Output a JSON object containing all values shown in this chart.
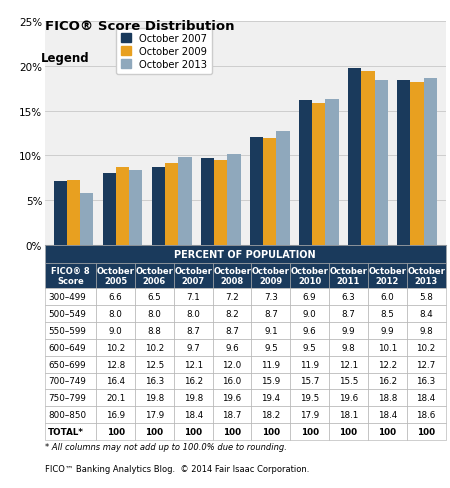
{
  "title": "FICO® Score Distribution",
  "categories": [
    "300–499",
    "500–549",
    "550–599",
    "600–649",
    "650–699",
    "700–749",
    "750–799",
    "800–850"
  ],
  "series": [
    {
      "label": "October 2007",
      "color": "#1a3a5c",
      "values": [
        7.1,
        8.0,
        8.7,
        9.7,
        12.1,
        16.2,
        19.8,
        18.4
      ]
    },
    {
      "label": "October 2009",
      "color": "#e8a020",
      "values": [
        7.3,
        8.7,
        9.1,
        9.5,
        11.9,
        15.9,
        19.4,
        18.2
      ]
    },
    {
      "label": "October 2013",
      "color": "#8fa8bc",
      "values": [
        5.8,
        8.4,
        9.8,
        10.2,
        12.7,
        16.3,
        18.4,
        18.6
      ]
    }
  ],
  "ylim": [
    0,
    25
  ],
  "yticks": [
    0,
    5,
    10,
    15,
    20,
    25
  ],
  "ytick_labels": [
    "0%",
    "5%",
    "10%",
    "15%",
    "20%",
    "25%"
  ],
  "legend_title": "Legend",
  "chart_bg": "#f0f0f0",
  "grid_color": "#c8c8c8",
  "table_header_bg": "#1a3a5c",
  "table_header_fg": "#ffffff",
  "table_col_header_bg": "#1a3a5c",
  "table_col_header_fg": "#ffffff",
  "table_row_bg": "#ffffff",
  "table_data_fg": "#000000",
  "table_total_bg": "#ffffff",
  "table_border": "#aaaaaa",
  "table_columns": [
    "FICO® 8\nScore",
    "October\n2005",
    "October\n2006",
    "October\n2007",
    "October\n2008",
    "October\n2009",
    "October\n2010",
    "October\n2011",
    "October\n2012",
    "October\n2013"
  ],
  "table_rows": [
    [
      "300–499",
      "6.6",
      "6.5",
      "7.1",
      "7.2",
      "7.3",
      "6.9",
      "6.3",
      "6.0",
      "5.8"
    ],
    [
      "500–549",
      "8.0",
      "8.0",
      "8.0",
      "8.2",
      "8.7",
      "9.0",
      "8.7",
      "8.5",
      "8.4"
    ],
    [
      "550–599",
      "9.0",
      "8.8",
      "8.7",
      "8.7",
      "9.1",
      "9.6",
      "9.9",
      "9.9",
      "9.8"
    ],
    [
      "600–649",
      "10.2",
      "10.2",
      "9.7",
      "9.6",
      "9.5",
      "9.5",
      "9.8",
      "10.1",
      "10.2"
    ],
    [
      "650–699",
      "12.8",
      "12.5",
      "12.1",
      "12.0",
      "11.9",
      "11.9",
      "12.1",
      "12.2",
      "12.7"
    ],
    [
      "700–749",
      "16.4",
      "16.3",
      "16.2",
      "16.0",
      "15.9",
      "15.7",
      "15.5",
      "16.2",
      "16.3"
    ],
    [
      "750–799",
      "20.1",
      "19.8",
      "19.8",
      "19.6",
      "19.4",
      "19.5",
      "19.6",
      "18.8",
      "18.4"
    ],
    [
      "800–850",
      "16.9",
      "17.9",
      "18.4",
      "18.7",
      "18.2",
      "17.9",
      "18.1",
      "18.4",
      "18.6"
    ],
    [
      "TOTAL*",
      "100",
      "100",
      "100",
      "100",
      "100",
      "100",
      "100",
      "100",
      "100"
    ]
  ],
  "footnote1": "* All columns may not add up to 100.0% due to rounding.",
  "footnote2": "FICO™ Banking Analytics Blog.  © 2014 Fair Isaac Corporation."
}
